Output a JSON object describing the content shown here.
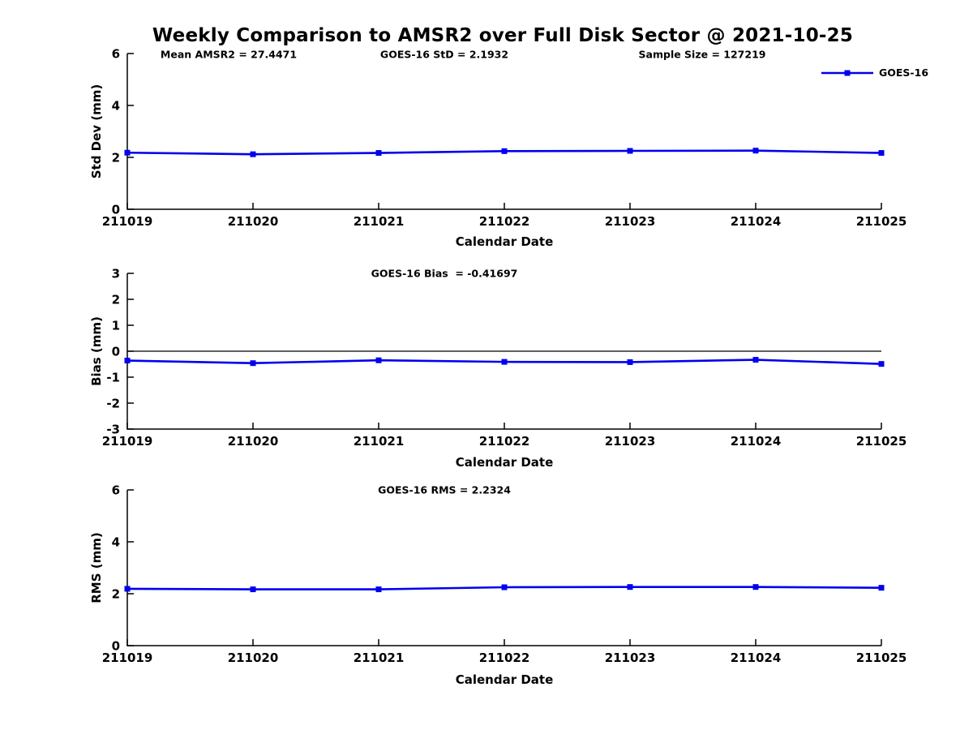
{
  "figure": {
    "title": "Weekly Comparison to AMSR2 over Full Disk Sector @ 2021-10-25",
    "colors": {
      "line": "#0000EE",
      "axis": "#000000",
      "text": "#000000",
      "background": "#FFFFFF"
    }
  },
  "chart_data": [
    {
      "type": "line",
      "title": "",
      "annotations": [
        "Mean AMSR2 = 27.4471",
        "GOES-16 StD = 2.1932",
        "Sample Size = 127219"
      ],
      "categories": [
        "211019",
        "211020",
        "211021",
        "211022",
        "211023",
        "211024",
        "211025"
      ],
      "series": [
        {
          "name": "GOES-16",
          "values": [
            2.18,
            2.12,
            2.17,
            2.24,
            2.25,
            2.26,
            2.17
          ]
        }
      ],
      "xlabel": "Calendar Date",
      "ylabel": "Std Dev (mm)",
      "ylim": [
        0,
        6
      ],
      "yticks": [
        0,
        2,
        4,
        6
      ],
      "legend_position": "top-right-outside",
      "grid": false,
      "zero_line": false
    },
    {
      "type": "line",
      "title": "GOES-16 Bias  = -0.41697",
      "categories": [
        "211019",
        "211020",
        "211021",
        "211022",
        "211023",
        "211024",
        "211025"
      ],
      "series": [
        {
          "name": "GOES-16",
          "values": [
            -0.36,
            -0.46,
            -0.35,
            -0.41,
            -0.42,
            -0.33,
            -0.49
          ]
        }
      ],
      "xlabel": "Calendar Date",
      "ylabel": "Bias (mm)",
      "ylim": [
        -3,
        3
      ],
      "yticks": [
        -3,
        -2,
        -1,
        0,
        1,
        2,
        3
      ],
      "grid": false,
      "zero_line": true
    },
    {
      "type": "line",
      "title": "GOES-16 RMS = 2.2324",
      "categories": [
        "211019",
        "211020",
        "211021",
        "211022",
        "211023",
        "211024",
        "211025"
      ],
      "series": [
        {
          "name": "GOES-16",
          "values": [
            2.19,
            2.17,
            2.17,
            2.25,
            2.26,
            2.26,
            2.23
          ]
        }
      ],
      "xlabel": "Calendar Date",
      "ylabel": "RMS (mm)",
      "ylim": [
        0,
        6
      ],
      "yticks": [
        0,
        2,
        4,
        6
      ],
      "grid": false,
      "zero_line": false
    }
  ]
}
